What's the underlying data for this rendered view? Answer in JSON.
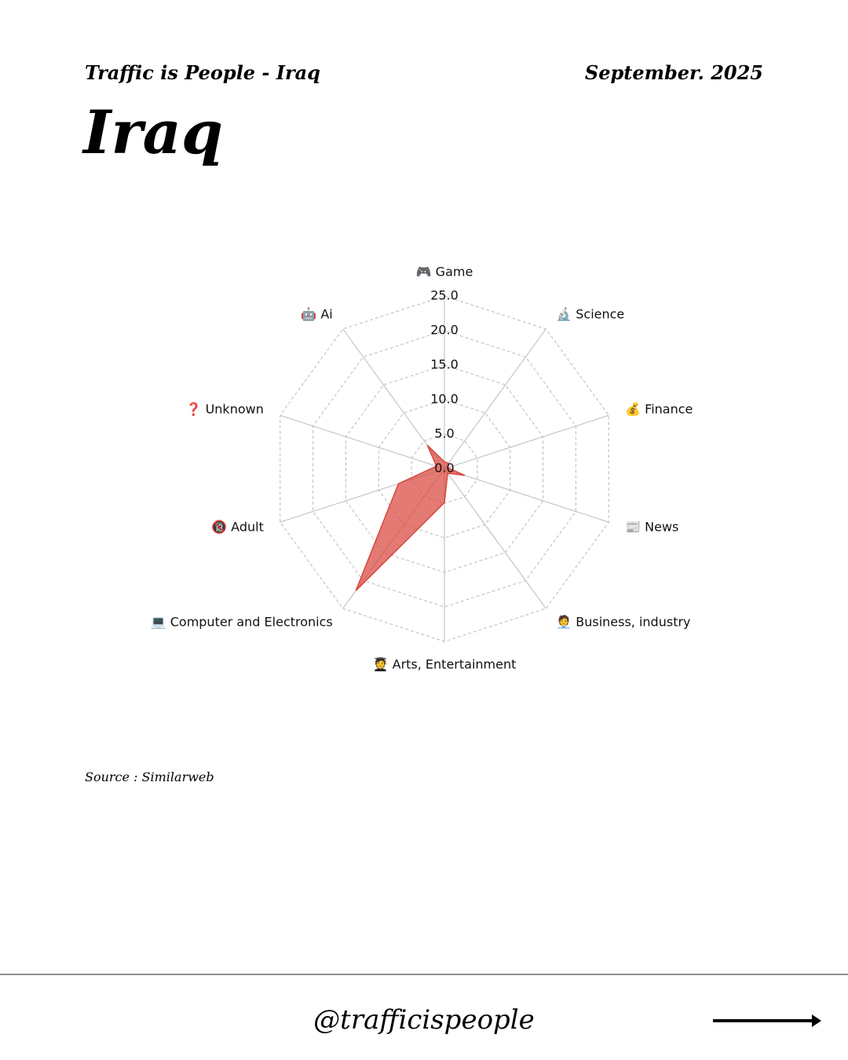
{
  "header": {
    "left": "Traffic is People - Iraq",
    "right": "September. 2025",
    "title": "Iraq"
  },
  "chart_data": {
    "type": "radar",
    "categories": [
      "🎮 Game",
      "🔬 Science",
      "💰 Finance",
      "📰 News",
      "🧑‍💼 Business, industry",
      "🧑‍🎓 Arts, Entertainment",
      "💻 Computer and Electronics",
      "🔞 Adult",
      "❓ Unknown",
      "🤖 Ai"
    ],
    "values": [
      1.0,
      1.0,
      0.5,
      3.1,
      0.8,
      4.9,
      21.8,
      7.0,
      1.2,
      4.2
    ],
    "color": "#d9473f",
    "ylim": [
      0,
      25
    ],
    "yticks": [
      {
        "value": 0,
        "label": "0.0"
      },
      {
        "value": 5,
        "label": "5.0"
      },
      {
        "value": 10,
        "label": "10.0"
      },
      {
        "value": 15,
        "label": "15.0"
      },
      {
        "value": 20,
        "label": "20.0"
      },
      {
        "value": 25,
        "label": "25.0"
      }
    ],
    "grid": true
  },
  "source": "Source : Similarweb",
  "footer": {
    "handle": "@trafficispeople"
  }
}
